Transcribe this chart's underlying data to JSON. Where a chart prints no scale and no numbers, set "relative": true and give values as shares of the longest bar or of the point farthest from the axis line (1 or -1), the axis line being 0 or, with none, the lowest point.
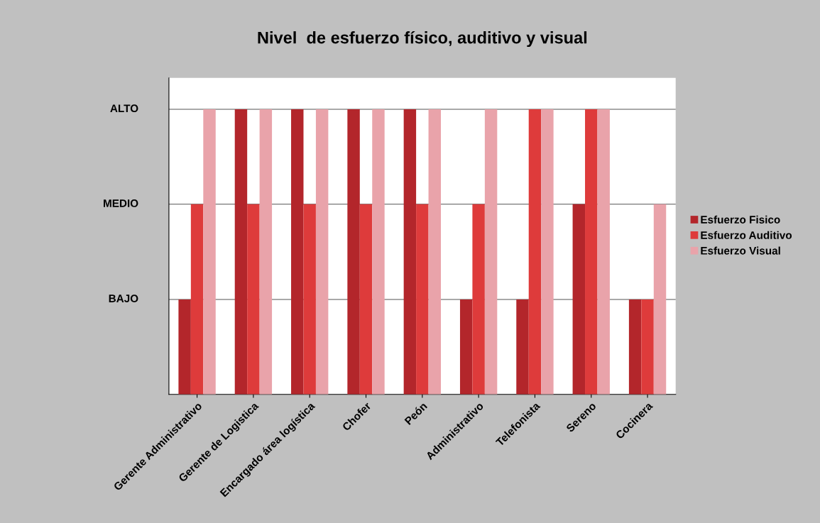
{
  "chart_data": {
    "type": "bar",
    "title": "Nivel  de esfuerzo físico, auditivo y visual",
    "relative": true,
    "categories": [
      "Gerente Administrativo",
      "Gerente de Logistica",
      "Encargado área logística",
      "Chofer",
      "Peón",
      "Administrativo",
      "Telefonista",
      "Sereno",
      "Cocinera"
    ],
    "series": [
      {
        "name": "Esfuerzo Fisico",
        "color": "#b3262b",
        "values": [
          0.333,
          1,
          1,
          1,
          1,
          0.333,
          0.333,
          0.667,
          0.333
        ]
      },
      {
        "name": "Esfuerzo Auditivo",
        "color": "#de3b3b",
        "values": [
          0.667,
          0.667,
          0.667,
          0.667,
          0.667,
          0.667,
          1,
          1,
          0.333
        ]
      },
      {
        "name": "Esfuerzo Visual",
        "color": "#e9a3aa",
        "values": [
          1,
          1,
          1,
          1,
          1,
          1,
          1,
          1,
          0.667
        ]
      }
    ],
    "ref_lines": [
      {
        "axis": "y",
        "value": 0.333,
        "label": "BAJO",
        "color": "#555555"
      },
      {
        "axis": "y",
        "value": 0.667,
        "label": "MEDIO",
        "color": "#555555"
      },
      {
        "axis": "y",
        "value": 1,
        "label": "ALTO",
        "color": "#555555"
      }
    ],
    "legend": "right"
  }
}
